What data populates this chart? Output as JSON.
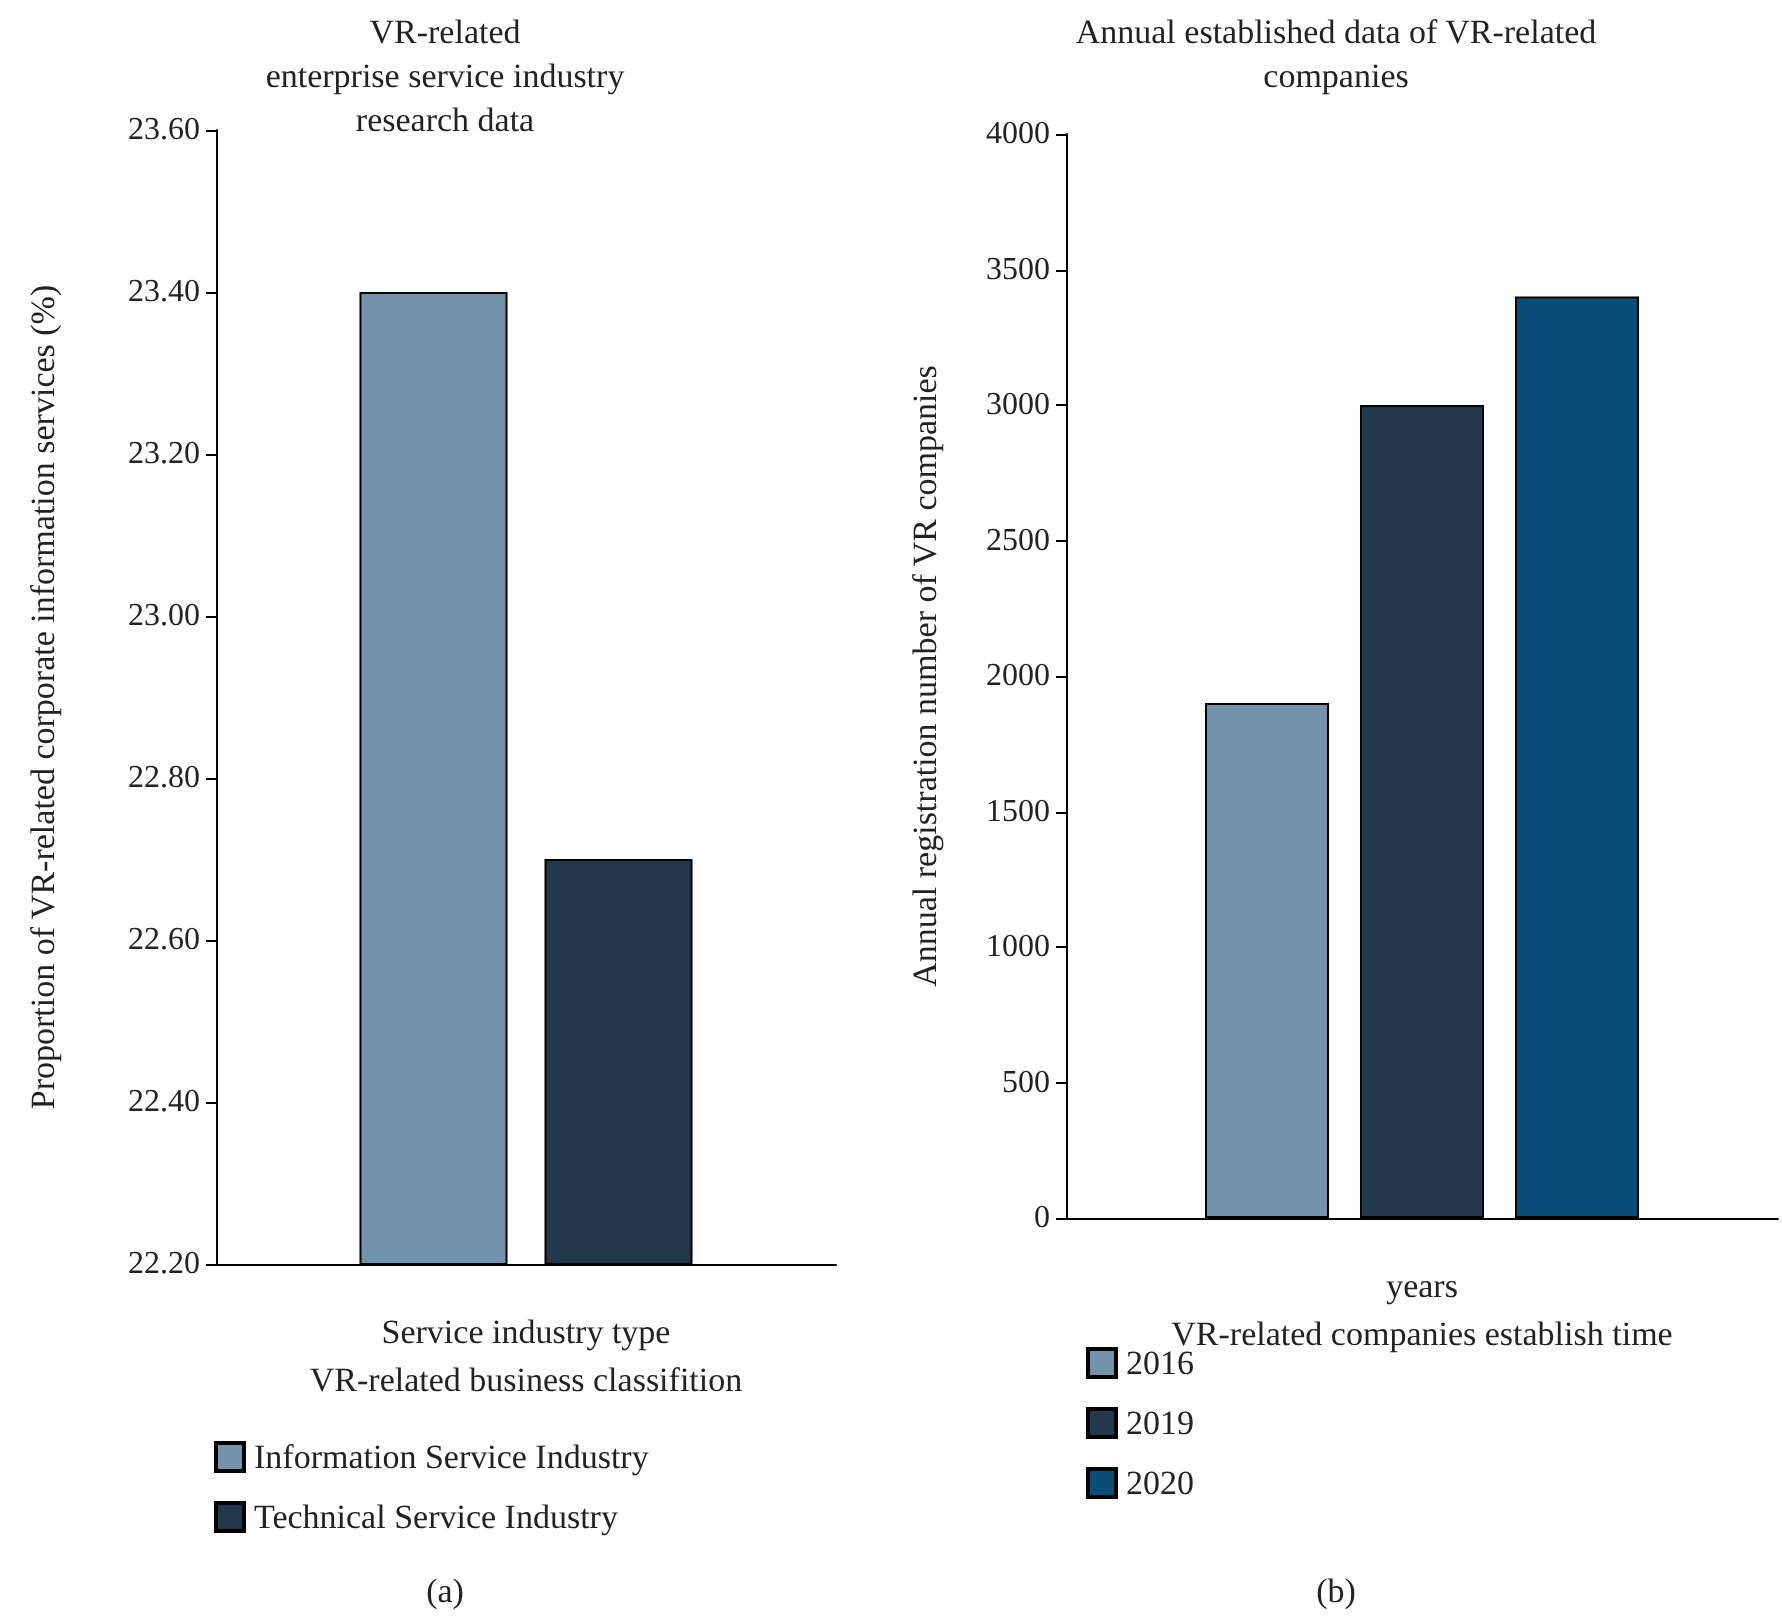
{
  "chart_data": [
    {
      "type": "bar",
      "title": "VR-related\nenterprise service industry\nresearch data",
      "xlabel": "Service industry type\nVR-related business classifition",
      "ylabel": "Proportion of VR-related corporate information services (%)",
      "categories": [
        null
      ],
      "series": [
        {
          "name": "Information Service Industry",
          "color": "#7393ab",
          "values": [
            23.4
          ]
        },
        {
          "name": "Technical Service Industry",
          "color": "#21384b",
          "values": [
            22.7
          ]
        }
      ],
      "ylim": [
        22.2,
        23.6
      ],
      "yticks": [
        {
          "value": 22.2,
          "label": "22.20"
        },
        {
          "value": 22.4,
          "label": "22.40"
        },
        {
          "value": 22.6,
          "label": "22.60"
        },
        {
          "value": 22.8,
          "label": "22.80"
        },
        {
          "value": 23.0,
          "label": "23.00"
        },
        {
          "value": 23.2,
          "label": "23.20"
        },
        {
          "value": 23.4,
          "label": "23.40"
        },
        {
          "value": 23.6,
          "label": "23.60"
        }
      ],
      "grid": false,
      "legend": "bottom",
      "annotations": [
        "(a)"
      ]
    },
    {
      "type": "bar",
      "title": "Annual established data of VR-related\ncompanies",
      "xlabel": "years\nVR-related companies establish time",
      "ylabel": "Annual registration number of VR companies",
      "categories": [
        null
      ],
      "series": [
        {
          "name": "2016",
          "color": "#7393ab",
          "values": [
            1900
          ]
        },
        {
          "name": "2019",
          "color": "#21384b",
          "values": [
            3000
          ]
        },
        {
          "name": "2020",
          "color": "#0a4d76",
          "values": [
            3400
          ]
        }
      ],
      "ylim": [
        0,
        4000
      ],
      "yticks": [
        0,
        500,
        1000,
        1500,
        2000,
        2500,
        3000,
        3500,
        4000
      ],
      "grid": false,
      "legend": "bottom",
      "annotations": [
        "(b)"
      ]
    }
  ]
}
